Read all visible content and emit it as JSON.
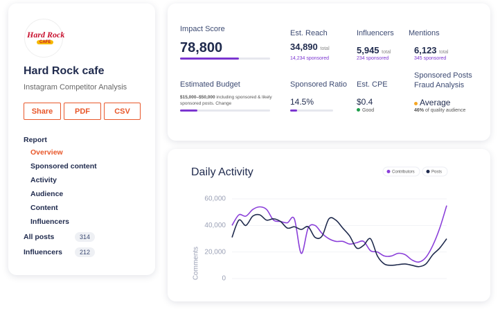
{
  "sidebar": {
    "logo": {
      "line1": "Hard Rock",
      "line2": "CAFE"
    },
    "name": "Hard Rock cafe",
    "subtitle": "Instagram Competitor Analysis",
    "buttons": [
      "Share",
      "PDF",
      "CSV"
    ],
    "section": "Report",
    "nav": [
      "Overview",
      "Sponsored content",
      "Activity",
      "Audience",
      "Content",
      "Influencers"
    ],
    "counts": [
      {
        "label": "All posts",
        "count": "314"
      },
      {
        "label": "Influencers",
        "count": "212"
      }
    ]
  },
  "metrics": {
    "impact": {
      "label": "Impact Score",
      "value": "78,800"
    },
    "reach": {
      "label": "Est. Reach",
      "value": "34,890",
      "unit": "total",
      "sponsored": "14,234 sponsored"
    },
    "influencers": {
      "label": "Influencers",
      "value": "5,945",
      "unit": "total",
      "sponsored": "234 sponsored"
    },
    "mentions": {
      "label": "Mentions",
      "value": "6,123",
      "unit": "total",
      "sponsored": "345 sponsored"
    },
    "budget": {
      "label": "Estimated Budget",
      "range": "$15,000–$50,000",
      "note": "including sponsored & likely sponsored posts. Change"
    },
    "ratio": {
      "label": "Sponsored Ratio",
      "value": "14.5%"
    },
    "cpe": {
      "label": "Est. CPE",
      "value": "$0.4",
      "status": "Good"
    },
    "fraud": {
      "label1": "Sponsored Posts",
      "label2": "Fraud Analysis",
      "value": "Average",
      "pct": "46%",
      "note": "of quality audience"
    }
  },
  "chart_data": {
    "type": "line",
    "title": "Daily Activity",
    "ylabel": "Comments",
    "categories": [
      null,
      null,
      null,
      null,
      null,
      null,
      null,
      null,
      null,
      null,
      null,
      null,
      null,
      null,
      null,
      null,
      null,
      null,
      null,
      null,
      null,
      null,
      null,
      null,
      null,
      null,
      null,
      null,
      null,
      null,
      null,
      null
    ],
    "ylim": [
      0,
      60000
    ],
    "yticks": [
      0,
      {
        "value": 20000,
        "label": "20,000"
      },
      {
        "value": 40000,
        "label": "40,000"
      },
      {
        "value": 60000,
        "label": "60,000"
      }
    ],
    "grid": true,
    "series": [
      {
        "name": "Contributors",
        "color": "#8a3fd9",
        "values": [
          40000,
          48000,
          47000,
          52000,
          54000,
          52000,
          44000,
          43000,
          42000,
          45000,
          19000,
          38000,
          40000,
          34000,
          30000,
          28000,
          28000,
          26000,
          27000,
          28000,
          21000,
          20000,
          17000,
          17000,
          19000,
          18000,
          14000,
          12500,
          16000,
          25000,
          38000,
          55000
        ]
      },
      {
        "name": "Posts",
        "color": "#1f2a4d",
        "values": [
          31000,
          44000,
          40000,
          47000,
          48000,
          44000,
          45000,
          43000,
          38000,
          39000,
          37000,
          39000,
          31000,
          32000,
          45000,
          44000,
          38000,
          32000,
          23000,
          25000,
          30000,
          17000,
          11000,
          10000,
          10500,
          11000,
          10000,
          9000,
          11000,
          18000,
          23000,
          30000
        ]
      }
    ]
  }
}
